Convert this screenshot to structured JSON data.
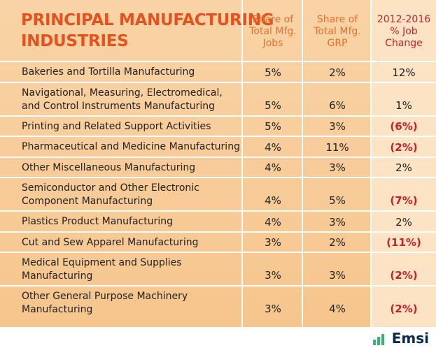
{
  "header": {
    "title": [
      "PRINCIPAL MANUFACTURING",
      "INDUSTRIES"
    ],
    "columns": [
      [
        "Share of",
        "Total Mfg.",
        "Jobs"
      ],
      [
        "Share of",
        "Total Mfg.",
        "GRP"
      ],
      [
        "2012-2016",
        "% Job",
        "Change"
      ]
    ]
  },
  "table": {
    "rows": [
      {
        "name": [
          "Bakeries and Tortilla Manufacturing"
        ],
        "cells": [
          "5%",
          "2%",
          "12%"
        ]
      },
      {
        "name": [
          "Navigational, Measuring, Electromedical,",
          "and Control Instruments Manufacturing"
        ],
        "cells": [
          "5%",
          "6%",
          "1%"
        ]
      },
      {
        "name": [
          "Printing and Related Support Activities"
        ],
        "cells": [
          "5%",
          "3%",
          "(6%)"
        ]
      },
      {
        "name": [
          "Pharmaceutical and Medicine Manufacturing"
        ],
        "cells": [
          "4%",
          "11%",
          "(2%)"
        ]
      },
      {
        "name": [
          "Other Miscellaneous Manufacturing"
        ],
        "cells": [
          "4%",
          "3%",
          "2%"
        ]
      },
      {
        "name": [
          "Semiconductor and Other Electronic",
          "Component Manufacturing"
        ],
        "cells": [
          "4%",
          "5%",
          "(7%)"
        ]
      },
      {
        "name": [
          "Plastics Product Manufacturing"
        ],
        "cells": [
          "4%",
          "3%",
          "2%"
        ]
      },
      {
        "name": [
          "Cut and Sew Apparel Manufacturing"
        ],
        "cells": [
          "3%",
          "2%",
          "(11%)"
        ]
      },
      {
        "name": [
          "Medical Equipment and Supplies",
          "Manufacturing"
        ],
        "cells": [
          "3%",
          "3%",
          "(2%)"
        ]
      },
      {
        "name": [
          "Other General Purpose Machinery",
          "Manufacturing"
        ],
        "cells": [
          "3%",
          "4%",
          "(2%)"
        ]
      }
    ]
  },
  "footer": {
    "logo": "Emsi"
  }
}
